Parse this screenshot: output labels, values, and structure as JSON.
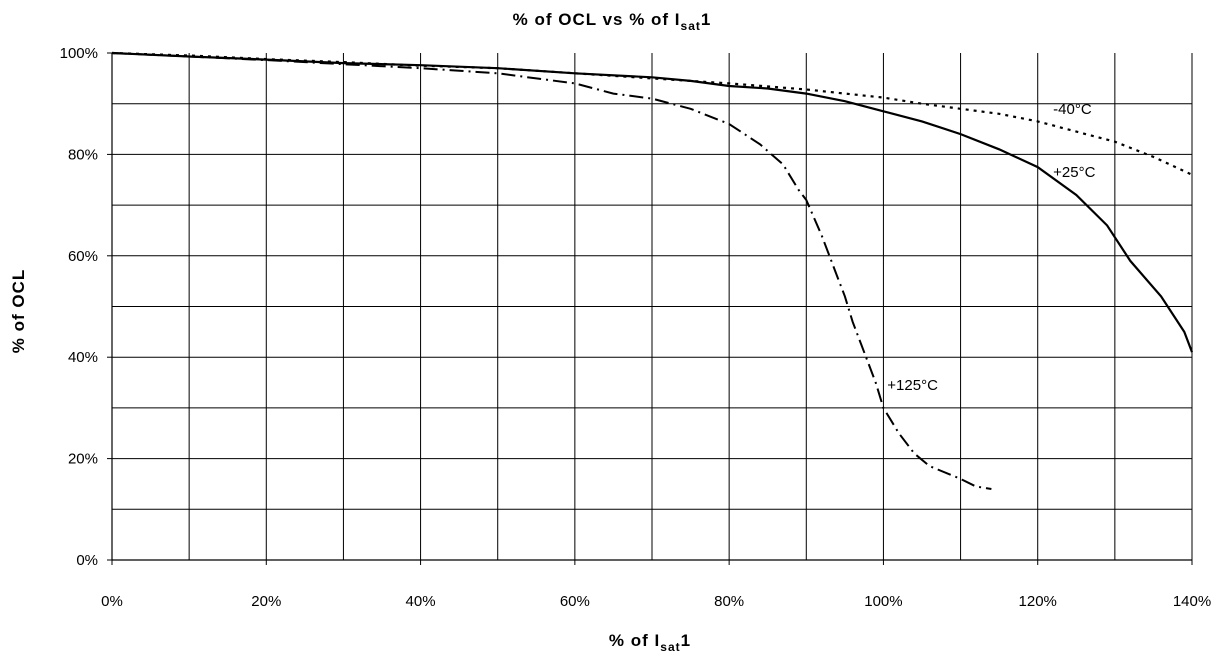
{
  "chart_data": {
    "type": "line",
    "title": {
      "pre": "% of OCL vs % of I",
      "sub": "sat",
      "post": "1"
    },
    "xlabel": {
      "pre": "% of I",
      "sub": "sat",
      "post": "1"
    },
    "ylabel": "% of OCL",
    "xlim": [
      0,
      140
    ],
    "ylim": [
      0,
      100
    ],
    "x_ticks": [
      0,
      20,
      40,
      60,
      80,
      100,
      120,
      140
    ],
    "x_tick_labels": [
      "0%",
      "20%",
      "40%",
      "60%",
      "80%",
      "100%",
      "120%",
      "140%"
    ],
    "y_ticks": [
      0,
      20,
      40,
      60,
      80,
      100
    ],
    "y_tick_labels": [
      "0%",
      "20%",
      "40%",
      "60%",
      "80%",
      "100%"
    ],
    "grid": {
      "x_step": 10,
      "y_step": 10
    },
    "legend": "none",
    "series": [
      {
        "name": "-40°C",
        "style": "dotted",
        "label_at": [
          122,
          88
        ],
        "points": [
          [
            0,
            100
          ],
          [
            10,
            99.5
          ],
          [
            20,
            98.8
          ],
          [
            30,
            98.2
          ],
          [
            40,
            97.5
          ],
          [
            50,
            97
          ],
          [
            60,
            96
          ],
          [
            70,
            95
          ],
          [
            80,
            94
          ],
          [
            90,
            92.8
          ],
          [
            100,
            91.2
          ],
          [
            105,
            90
          ],
          [
            110,
            89
          ],
          [
            115,
            88
          ],
          [
            120,
            86.5
          ],
          [
            125,
            84.5
          ],
          [
            130,
            82.5
          ],
          [
            135,
            79.5
          ],
          [
            140,
            76
          ]
        ]
      },
      {
        "name": "+25°C",
        "style": "solid",
        "label_at": [
          122,
          75.5
        ],
        "points": [
          [
            0,
            100
          ],
          [
            10,
            99.3
          ],
          [
            20,
            98.7
          ],
          [
            30,
            98
          ],
          [
            40,
            97.6
          ],
          [
            50,
            97
          ],
          [
            60,
            96
          ],
          [
            70,
            95.2
          ],
          [
            75,
            94.5
          ],
          [
            80,
            93.5
          ],
          [
            85,
            93
          ],
          [
            90,
            92
          ],
          [
            95,
            90.5
          ],
          [
            100,
            88.5
          ],
          [
            105,
            86.5
          ],
          [
            110,
            84
          ],
          [
            115,
            81
          ],
          [
            120,
            77.5
          ],
          [
            125,
            72
          ],
          [
            129,
            66
          ],
          [
            132,
            59
          ],
          [
            136,
            52
          ],
          [
            139,
            45
          ],
          [
            140,
            41
          ]
        ]
      },
      {
        "name": "+125°C",
        "style": "dashdot",
        "label_at": [
          100.5,
          33.5
        ],
        "points": [
          [
            0,
            100
          ],
          [
            10,
            99.3
          ],
          [
            20,
            98.6
          ],
          [
            30,
            97.8
          ],
          [
            40,
            97
          ],
          [
            50,
            96
          ],
          [
            55,
            95
          ],
          [
            60,
            94
          ],
          [
            65,
            92
          ],
          [
            70,
            91
          ],
          [
            75,
            89
          ],
          [
            80,
            86
          ],
          [
            84,
            82
          ],
          [
            87,
            78
          ],
          [
            89,
            73
          ],
          [
            90,
            71
          ],
          [
            92,
            64
          ],
          [
            94,
            56
          ],
          [
            95,
            52
          ],
          [
            96,
            47
          ],
          [
            97,
            43
          ],
          [
            98,
            39
          ],
          [
            99,
            35
          ],
          [
            100,
            30
          ],
          [
            102,
            25
          ],
          [
            104,
            21
          ],
          [
            106,
            18.5
          ],
          [
            110,
            16
          ],
          [
            112,
            14.5
          ],
          [
            114,
            14
          ]
        ]
      }
    ]
  }
}
